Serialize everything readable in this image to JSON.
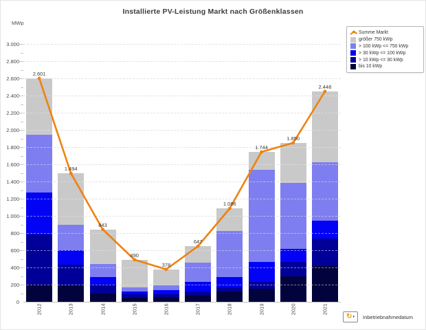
{
  "title": "Installierte PV-Leistung Markt nach Größenklassen",
  "y_axis": {
    "unit": "MWp",
    "min": 0,
    "max": 3000,
    "major_step": 200,
    "minor_step": 100,
    "tick_labels": [
      "0",
      "200",
      "400",
      "600",
      "800",
      "1.000",
      "1.200",
      "1.400",
      "1.600",
      "1.800",
      "2.000",
      "2.200",
      "2.400",
      "2.600",
      "2.800",
      "3.000"
    ]
  },
  "x_axis": {
    "categories": [
      "2012",
      "2013",
      "2014",
      "2015",
      "2016",
      "2017",
      "2018",
      "2019",
      "2020",
      "2021"
    ]
  },
  "legend": {
    "items": [
      {
        "label": "Summe Markt",
        "color": "#ef820d",
        "type": "line"
      },
      {
        "label": "größer 750 kWp",
        "color": "#c9c9c9",
        "type": "box"
      },
      {
        "label": "> 100 kWp <= 750 kWp",
        "color": "#7e7ef0",
        "type": "box"
      },
      {
        "label": "> 30 kWp <= 100 kWp",
        "color": "#0202f5",
        "type": "box"
      },
      {
        "label": "> 10 kWp <= 30 kWp",
        "color": "#000099",
        "type": "box"
      },
      {
        "label": "bis 10 kWp",
        "color": "#02023d",
        "type": "box"
      }
    ]
  },
  "footer": {
    "label": "Inbetriebnahmedatum",
    "icon": "refresh-dropdown-icon",
    "refresh_glyph": "↻",
    "dropdown_glyph": "▾"
  },
  "colors": {
    "line": "#ef820d",
    "grid": "#d9d9d9",
    "axis": "#bfbfbf",
    "text": "#4a4a4a"
  },
  "chart_data": {
    "type": "bar",
    "subtype": "stacked-with-line",
    "title": "Installierte PV-Leistung Markt nach Größenklassen",
    "xlabel": "Inbetriebnahmedatum",
    "ylabel": "MWp",
    "ylim": [
      0,
      3000
    ],
    "grid": true,
    "legend_position": "top-right",
    "categories": [
      "2012",
      "2013",
      "2014",
      "2015",
      "2016",
      "2017",
      "2018",
      "2019",
      "2020",
      "2021"
    ],
    "series": [
      {
        "name": "bis 10 kWp",
        "color": "#02023d",
        "values": [
          200,
          195,
          96,
          48,
          55,
          72,
          123,
          150,
          298,
          419
        ]
      },
      {
        "name": "> 10 kWp <= 30 kWp",
        "color": "#000099",
        "values": [
          585,
          235,
          102,
          38,
          35,
          46,
          44,
          81,
          163,
          321
        ]
      },
      {
        "name": "> 30 kWp <= 100 kWp",
        "color": "#0202f5",
        "values": [
          490,
          170,
          92,
          37,
          45,
          113,
          125,
          236,
          153,
          204
        ]
      },
      {
        "name": "> 100 kWp <= 750 kWp",
        "color": "#7e7ef0",
        "values": [
          670,
          295,
          147,
          48,
          60,
          222,
          529,
          1068,
          771,
          682
        ]
      },
      {
        "name": "größer 750 kWp",
        "color": "#c9c9c9",
        "values": [
          656,
          599,
          406,
          319,
          183,
          194,
          265,
          209,
          465,
          822
        ]
      }
    ],
    "line_series": {
      "name": "Summe Markt",
      "color": "#ef820d",
      "values": [
        2601,
        1494,
        843,
        490,
        378,
        647,
        1086,
        1744,
        1850,
        2448
      ]
    },
    "total_labels": [
      "2.601",
      "1.494",
      "843",
      "490",
      "378",
      "647",
      "1.086",
      "1.744",
      "1.850",
      "2.448"
    ]
  }
}
